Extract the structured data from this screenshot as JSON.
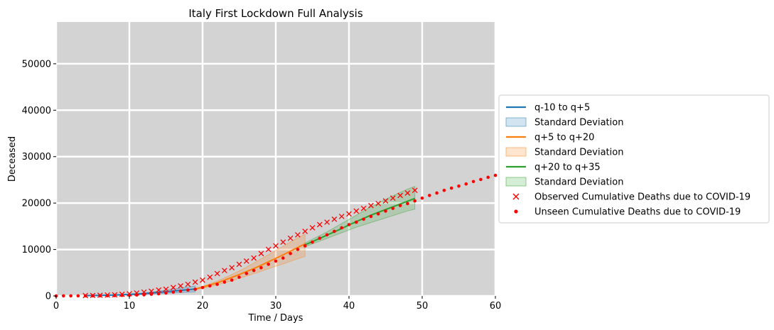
{
  "chart_data": {
    "type": "line",
    "title": "Italy First Lockdown Full Analysis",
    "xlabel": "Time / Days",
    "ylabel": "Deceased",
    "xlim": [
      0,
      60
    ],
    "ylim": [
      0,
      59000
    ],
    "xticks": [
      0,
      10,
      20,
      30,
      40,
      50,
      60
    ],
    "yticks": [
      0,
      10000,
      20000,
      30000,
      40000,
      50000
    ],
    "grid": true,
    "legend_position": "right-outside",
    "colors": {
      "background": "#d3d3d3",
      "grid": "#ffffff",
      "series1": "#1f77b4",
      "series2": "#ff7f0e",
      "series3": "#2ca02c",
      "points": "#ff0000"
    },
    "legend": [
      {
        "label": "q-10 to q+5",
        "kind": "line",
        "color": "#1f77b4"
      },
      {
        "label": "Standard Deviation",
        "kind": "patch",
        "color": "#1f77b4"
      },
      {
        "label": "q+5 to q+20",
        "kind": "line",
        "color": "#ff7f0e"
      },
      {
        "label": "Standard Deviation",
        "kind": "patch",
        "color": "#ff7f0e"
      },
      {
        "label": "q+20 to q+35",
        "kind": "line",
        "color": "#2ca02c"
      },
      {
        "label": "Standard Deviation",
        "kind": "patch",
        "color": "#2ca02c"
      },
      {
        "label": "Observed Cumulative Deaths due to COVID-19",
        "kind": "x",
        "color": "#ff0000"
      },
      {
        "label": "Unseen Cumulative Deaths due to COVID-19",
        "kind": "dot",
        "color": "#ff0000"
      }
    ],
    "series": [
      {
        "name": "q-10 to q+5",
        "color": "#1f77b4",
        "x": [
          4,
          5,
          6,
          7,
          8,
          9,
          10,
          11,
          12,
          13,
          14,
          15,
          16,
          17,
          18,
          19
        ],
        "y": [
          60,
          80,
          110,
          150,
          200,
          250,
          320,
          400,
          500,
          620,
          760,
          900,
          1050,
          1200,
          1350,
          1500
        ],
        "lower": [
          40,
          55,
          75,
          100,
          130,
          170,
          210,
          260,
          320,
          400,
          480,
          560,
          640,
          720,
          800,
          880
        ],
        "upper": [
          80,
          110,
          150,
          200,
          260,
          340,
          430,
          540,
          680,
          840,
          1040,
          1250,
          1480,
          1700,
          1930,
          2150
        ]
      },
      {
        "name": "q+5 to q+20",
        "color": "#ff7f0e",
        "x": [
          19,
          20,
          21,
          22,
          23,
          24,
          25,
          26,
          27,
          28,
          29,
          30,
          31,
          32,
          33,
          34
        ],
        "y": [
          1500,
          1900,
          2350,
          2850,
          3400,
          4000,
          4600,
          5250,
          5900,
          6600,
          7350,
          8100,
          8850,
          9650,
          10450,
          11200
        ],
        "lower": [
          1350,
          1650,
          2000,
          2400,
          2850,
          3300,
          3800,
          4300,
          4800,
          5300,
          5850,
          6400,
          6900,
          7450,
          8000,
          8500
        ],
        "upper": [
          1600,
          2050,
          2600,
          3200,
          3900,
          4600,
          5400,
          6200,
          7100,
          8000,
          8900,
          9800,
          10700,
          11650,
          12500,
          13300
        ]
      },
      {
        "name": "q+20 to q+35",
        "color": "#2ca02c",
        "x": [
          34,
          35,
          36,
          37,
          38,
          39,
          40,
          41,
          42,
          43,
          44,
          45,
          46,
          47,
          48,
          49
        ],
        "y": [
          11000,
          11700,
          12400,
          13100,
          13800,
          14500,
          15300,
          16000,
          16700,
          17400,
          18000,
          18600,
          19200,
          19800,
          20400,
          21000
        ],
        "lower": [
          10600,
          11200,
          11800,
          12400,
          13000,
          13600,
          14200,
          14800,
          15300,
          15800,
          16300,
          16800,
          17300,
          17800,
          18300,
          18700
        ],
        "upper": [
          11400,
          12200,
          13000,
          13800,
          14700,
          15600,
          16500,
          17400,
          18300,
          19200,
          20000,
          20800,
          21600,
          22300,
          23000,
          23600
        ]
      }
    ],
    "observed": {
      "name": "Observed Cumulative Deaths due to COVID-19",
      "marker": "x",
      "color": "#ff0000",
      "x": [
        4,
        5,
        6,
        7,
        8,
        9,
        10,
        11,
        12,
        13,
        14,
        15,
        16,
        17,
        18,
        19,
        20,
        21,
        22,
        23,
        24,
        25,
        26,
        27,
        28,
        29,
        30,
        31,
        32,
        33,
        34,
        35,
        36,
        37,
        38,
        39,
        40,
        41,
        42,
        43,
        44,
        45,
        46,
        47,
        48,
        49
      ],
      "y": [
        79,
        107,
        148,
        197,
        233,
        366,
        463,
        631,
        827,
        1016,
        1266,
        1441,
        1809,
        2158,
        2503,
        2978,
        3405,
        4032,
        4825,
        5476,
        6077,
        6820,
        7503,
        8165,
        9134,
        10023,
        10779,
        11591,
        12428,
        13155,
        13915,
        14681,
        15362,
        15887,
        16523,
        17127,
        17669,
        18279,
        18849,
        19468,
        19899,
        20465,
        21067,
        21645,
        22170,
        22745
      ]
    },
    "unseen": {
      "name": "Unseen Cumulative Deaths due to COVID-19",
      "marker": "dot",
      "color": "#ff0000",
      "x": [
        0,
        1,
        2,
        3,
        4,
        5,
        6,
        7,
        8,
        9,
        10,
        11,
        12,
        13,
        14,
        15,
        16,
        17,
        18,
        19,
        20,
        21,
        22,
        23,
        24,
        25,
        26,
        27,
        28,
        29,
        30,
        31,
        32,
        33,
        34,
        35,
        36,
        37,
        38,
        39,
        40,
        41,
        42,
        43,
        44,
        45,
        46,
        47,
        48,
        49,
        50,
        51,
        52,
        53,
        54,
        55,
        56,
        57,
        58,
        59,
        60
      ],
      "y": [
        7,
        10,
        12,
        17,
        21,
        29,
        34,
        52,
        79,
        107,
        148,
        197,
        233,
        366,
        463,
        631,
        827,
        1016,
        1266,
        1441,
        1809,
        2158,
        2503,
        2978,
        3405,
        4032,
        4825,
        5476,
        6077,
        6820,
        7503,
        8165,
        9134,
        10023,
        10779,
        11591,
        12428,
        13155,
        13915,
        14681,
        15362,
        15887,
        16523,
        17127,
        17669,
        18279,
        18849,
        19468,
        19899,
        20465,
        21067,
        21645,
        22170,
        22745,
        23227,
        23660,
        24114,
        24648,
        25085,
        25549,
        25969
      ]
    }
  }
}
